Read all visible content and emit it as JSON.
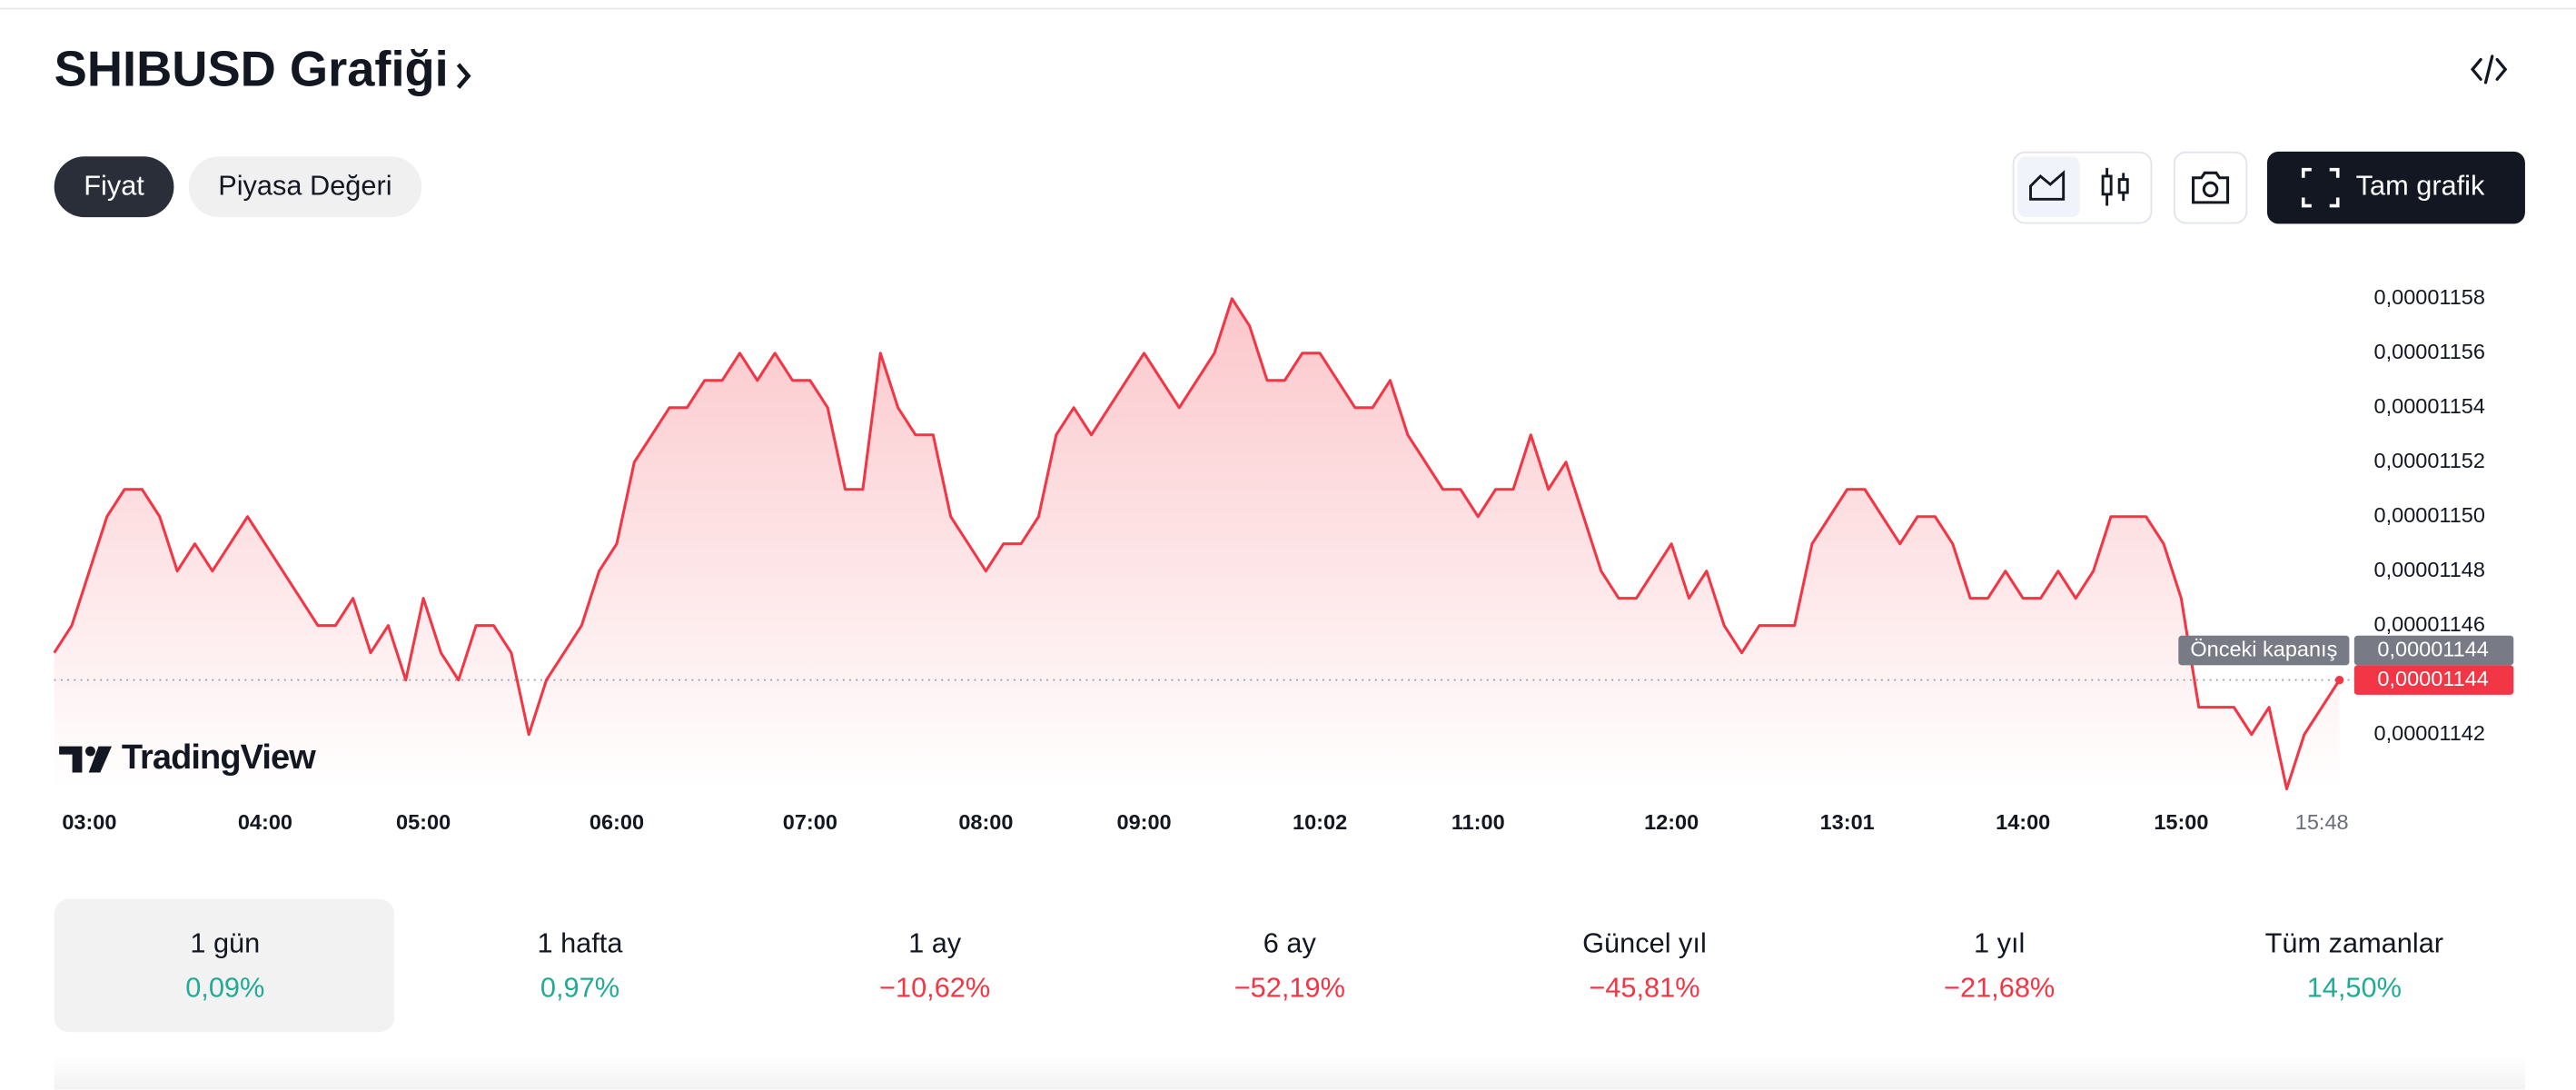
{
  "header": {
    "title": "SHIBUSD Grafiği"
  },
  "tabs": [
    {
      "label": "Fiyat",
      "active": true
    },
    {
      "label": "Piyasa Değeri",
      "active": false
    }
  ],
  "toolbar": {
    "full_chart": "Tam grafik"
  },
  "brand": "TradingView",
  "chart_data": {
    "type": "line",
    "categories": [
      null,
      null,
      "03:00",
      null,
      null,
      null,
      null,
      null,
      null,
      null,
      null,
      null,
      "04:00",
      null,
      null,
      null,
      null,
      null,
      null,
      null,
      null,
      "05:00",
      null,
      null,
      null,
      null,
      null,
      null,
      null,
      null,
      null,
      null,
      "06:00",
      null,
      null,
      null,
      null,
      null,
      null,
      null,
      null,
      null,
      null,
      "07:00",
      null,
      null,
      null,
      null,
      null,
      null,
      null,
      null,
      null,
      "08:00",
      null,
      null,
      null,
      null,
      null,
      null,
      null,
      null,
      "09:00",
      null,
      null,
      null,
      null,
      null,
      null,
      null,
      null,
      null,
      "10:02",
      null,
      null,
      null,
      null,
      null,
      null,
      null,
      null,
      "11:00",
      null,
      null,
      null,
      null,
      null,
      null,
      null,
      null,
      null,
      null,
      "12:00",
      null,
      null,
      null,
      null,
      null,
      null,
      null,
      null,
      null,
      "13:01",
      null,
      null,
      null,
      null,
      null,
      null,
      null,
      null,
      null,
      "14:00",
      null,
      null,
      null,
      null,
      null,
      null,
      null,
      null,
      "15:00",
      null,
      null,
      null,
      null,
      null,
      null,
      null,
      "15:48",
      null
    ],
    "series": [
      {
        "name": "SHIBUSD",
        "color": "#f23645",
        "values": [
          1.145e-05,
          1.146e-05,
          1.148e-05,
          1.15e-05,
          1.151e-05,
          1.151e-05,
          1.15e-05,
          1.148e-05,
          1.149e-05,
          1.148e-05,
          1.149e-05,
          1.15e-05,
          1.149e-05,
          1.148e-05,
          1.147e-05,
          1.146e-05,
          1.146e-05,
          1.147e-05,
          1.145e-05,
          1.146e-05,
          1.144e-05,
          1.147e-05,
          1.145e-05,
          1.144e-05,
          1.146e-05,
          1.146e-05,
          1.145e-05,
          1.142e-05,
          1.144e-05,
          1.145e-05,
          1.146e-05,
          1.148e-05,
          1.149e-05,
          1.152e-05,
          1.153e-05,
          1.154e-05,
          1.154e-05,
          1.155e-05,
          1.155e-05,
          1.156e-05,
          1.155e-05,
          1.156e-05,
          1.155e-05,
          1.155e-05,
          1.154e-05,
          1.151e-05,
          1.151e-05,
          1.156e-05,
          1.154e-05,
          1.153e-05,
          1.153e-05,
          1.15e-05,
          1.149e-05,
          1.148e-05,
          1.149e-05,
          1.149e-05,
          1.15e-05,
          1.153e-05,
          1.154e-05,
          1.153e-05,
          1.154e-05,
          1.155e-05,
          1.156e-05,
          1.155e-05,
          1.154e-05,
          1.155e-05,
          1.156e-05,
          1.158e-05,
          1.157e-05,
          1.155e-05,
          1.155e-05,
          1.156e-05,
          1.156e-05,
          1.155e-05,
          1.154e-05,
          1.154e-05,
          1.155e-05,
          1.153e-05,
          1.152e-05,
          1.151e-05,
          1.151e-05,
          1.15e-05,
          1.151e-05,
          1.151e-05,
          1.153e-05,
          1.151e-05,
          1.152e-05,
          1.15e-05,
          1.148e-05,
          1.147e-05,
          1.147e-05,
          1.148e-05,
          1.149e-05,
          1.147e-05,
          1.148e-05,
          1.146e-05,
          1.145e-05,
          1.146e-05,
          1.146e-05,
          1.146e-05,
          1.149e-05,
          1.15e-05,
          1.151e-05,
          1.151e-05,
          1.15e-05,
          1.149e-05,
          1.15e-05,
          1.15e-05,
          1.149e-05,
          1.147e-05,
          1.147e-05,
          1.148e-05,
          1.147e-05,
          1.147e-05,
          1.148e-05,
          1.147e-05,
          1.148e-05,
          1.15e-05,
          1.15e-05,
          1.15e-05,
          1.149e-05,
          1.147e-05,
          1.143e-05,
          1.143e-05,
          1.143e-05,
          1.142e-05,
          1.143e-05,
          1.14e-05,
          1.142e-05,
          1.143e-05,
          1.144e-05
        ]
      }
    ],
    "ylim": [
      1.14e-05,
      1.159e-05
    ],
    "yticks": [
      {
        "value": 1.142e-05,
        "label": "0,00001142"
      },
      {
        "value": 1.146e-05,
        "label": "0,00001146"
      },
      {
        "value": 1.148e-05,
        "label": "0,00001148"
      },
      {
        "value": 1.15e-05,
        "label": "0,00001150"
      },
      {
        "value": 1.152e-05,
        "label": "0,00001152"
      },
      {
        "value": 1.154e-05,
        "label": "0,00001154"
      },
      {
        "value": 1.156e-05,
        "label": "0,00001156"
      },
      {
        "value": 1.158e-05,
        "label": "0,00001158"
      }
    ],
    "grid": false,
    "previous_close": {
      "name": "Önceki kapanış",
      "value": 1.144e-05,
      "label": "0,00001144"
    },
    "last_price_label": "0,00001144"
  },
  "periods": [
    {
      "label": "1 gün",
      "change": "0,09%",
      "color": "#22ab94",
      "active": true
    },
    {
      "label": "1 hafta",
      "change": "0,97%",
      "color": "#22ab94",
      "active": false
    },
    {
      "label": "1 ay",
      "change": "−10,62%",
      "color": "#f23645",
      "active": false
    },
    {
      "label": "6 ay",
      "change": "−52,19%",
      "color": "#f23645",
      "active": false
    },
    {
      "label": "Güncel yıl",
      "change": "−45,81%",
      "color": "#f23645",
      "active": false
    },
    {
      "label": "1 yıl",
      "change": "−21,68%",
      "color": "#f23645",
      "active": false
    },
    {
      "label": "Tüm zamanlar",
      "change": "14,50%",
      "color": "#22ab94",
      "active": false
    }
  ]
}
